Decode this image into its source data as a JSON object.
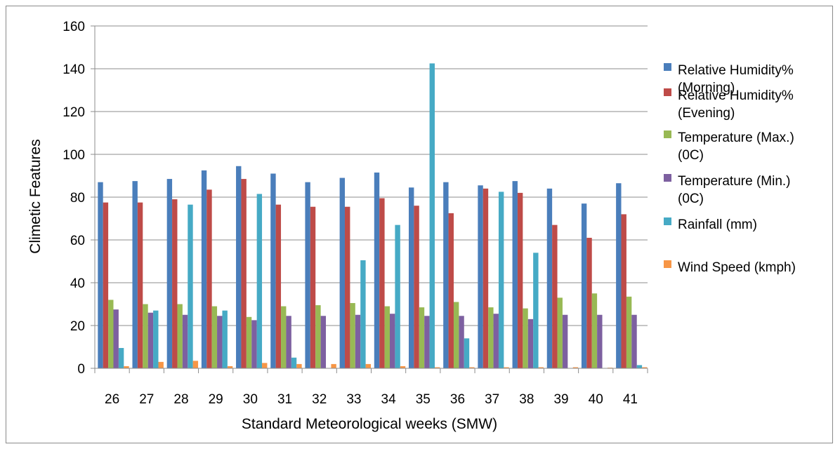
{
  "chart_data": {
    "type": "bar",
    "title": "",
    "xlabel": "Standard Meteorological weeks (SMW)",
    "ylabel": "Climetic Features",
    "ylim": [
      0,
      160
    ],
    "yticks": [
      "0",
      "20",
      "40",
      "60",
      "80",
      "100",
      "120",
      "140",
      "160"
    ],
    "grid": true,
    "legend_position": "right",
    "categories": [
      "26",
      "27",
      "28",
      "29",
      "30",
      "31",
      "32",
      "33",
      "34",
      "35",
      "36",
      "37",
      "38",
      "39",
      "40",
      "41"
    ],
    "series": [
      {
        "name": "Relative Humidity% (Morning)",
        "color": "#4a7ebb",
        "values": [
          87,
          87.5,
          88.5,
          92.5,
          94.5,
          91,
          87,
          89,
          91.5,
          84.5,
          87,
          85.5,
          87.5,
          84,
          77,
          86.5
        ]
      },
      {
        "name": "Relative Humidity% (Evening)",
        "color": "#be4b48",
        "values": [
          77.5,
          77.5,
          79,
          83.5,
          88.5,
          76.5,
          75.5,
          75.5,
          79.5,
          76,
          72.5,
          84,
          82,
          67,
          61,
          72
        ]
      },
      {
        "name": "Temperature (Max.) (0C)",
        "color": "#98b954",
        "values": [
          32,
          30,
          30,
          29,
          24,
          29,
          29.5,
          30.5,
          29,
          28.5,
          31,
          28.5,
          28,
          33,
          35,
          33.5
        ]
      },
      {
        "name": "Temperature (Min.) (0C)",
        "color": "#7d60a0",
        "values": [
          27.5,
          26,
          25,
          24.5,
          22.5,
          24.5,
          24.5,
          25,
          25.5,
          24.5,
          24.5,
          25.5,
          23,
          25,
          25,
          25
        ]
      },
      {
        "name": "Rainfall (mm)",
        "color": "#46aac5",
        "values": [
          9.5,
          27,
          76.5,
          27,
          81.5,
          5,
          0,
          50.5,
          67,
          142.5,
          14,
          82.5,
          54,
          0,
          0,
          1.5
        ]
      },
      {
        "name": "Wind Speed (kmph)",
        "color": "#f79646",
        "values": [
          1,
          3,
          3.5,
          1,
          2.5,
          2,
          2,
          2,
          1,
          0.5,
          0.5,
          0.5,
          0.5,
          0.5,
          0.3,
          0.5
        ]
      }
    ],
    "legend": [
      {
        "line1": "Relative Humidity%",
        "line2": "(Morning)"
      },
      {
        "line1": "Relative Humidity%",
        "line2": "(Evening)"
      },
      {
        "line1": "Temperature (Max.)",
        "line2": "(0C)"
      },
      {
        "line1": "Temperature (Min.)",
        "line2": "(0C)"
      },
      {
        "line1": "Rainfall (mm)",
        "line2": ""
      },
      {
        "line1": "Wind Speed (kmph)",
        "line2": ""
      }
    ]
  }
}
